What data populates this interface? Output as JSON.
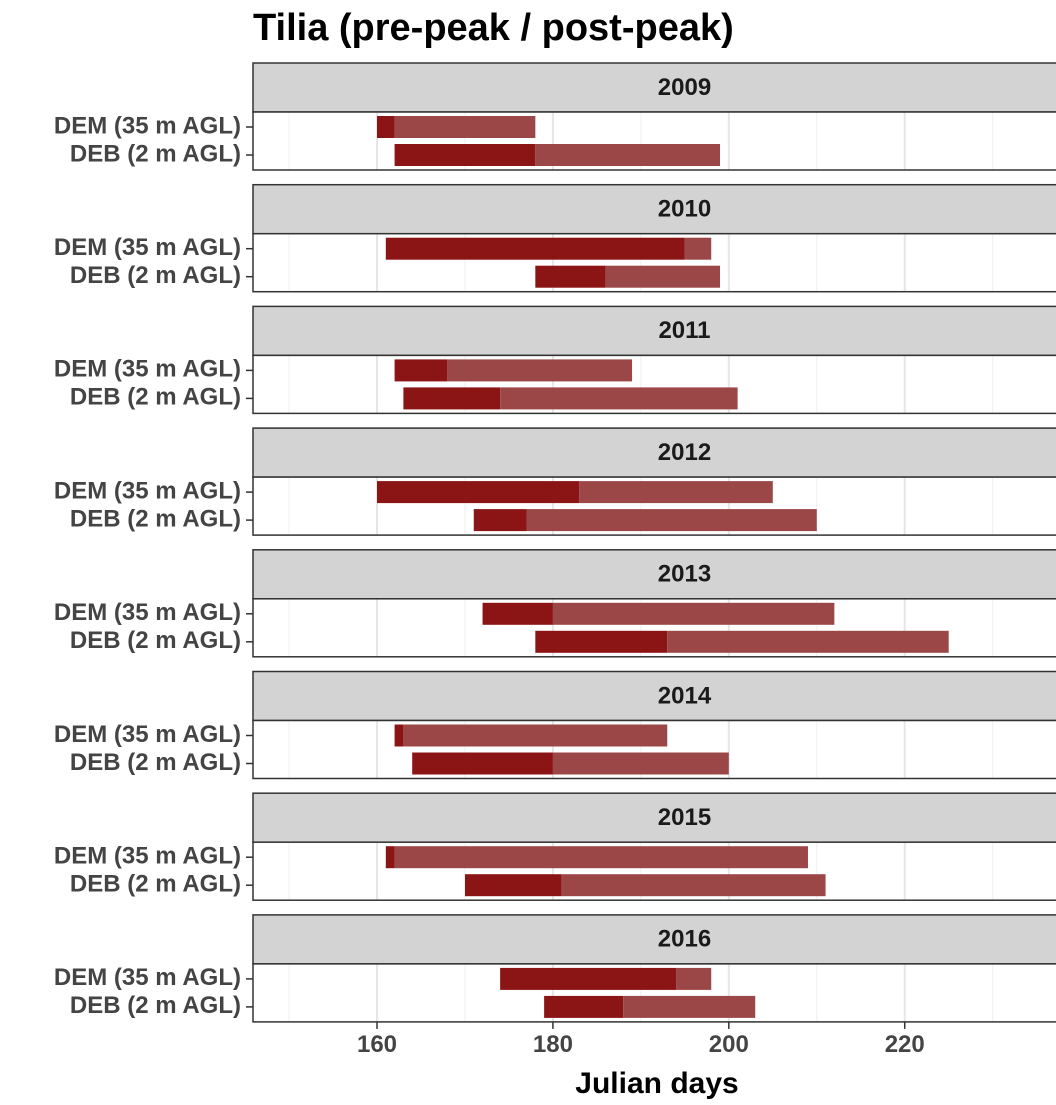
{
  "chart_data": {
    "type": "range",
    "title": "Tilia (pre-peak / post-peak)",
    "xlabel": "Julian days",
    "categories": [
      "DEM (35 m AGL)",
      "DEB (2 m AGL)"
    ],
    "colors": [
      "#8b1414",
      "#9c4747"
    ],
    "xlim": [
      145.9,
      237.2
    ],
    "xticks": [
      160,
      180,
      200,
      220
    ],
    "xminor": [
      150,
      170,
      190,
      210,
      230
    ],
    "grid": true,
    "facets": [
      {
        "label": "2009",
        "rows": [
          {
            "start": 160,
            "peak": 162,
            "end": 178
          },
          {
            "start": 162,
            "peak": 178,
            "end": 199
          }
        ]
      },
      {
        "label": "2010",
        "rows": [
          {
            "start": 161,
            "peak": 195,
            "end": 198
          },
          {
            "start": 178,
            "peak": 186,
            "end": 199
          }
        ]
      },
      {
        "label": "2011",
        "rows": [
          {
            "start": 162,
            "peak": 168,
            "end": 189
          },
          {
            "start": 163,
            "peak": 174,
            "end": 201
          }
        ]
      },
      {
        "label": "2012",
        "rows": [
          {
            "start": 160,
            "peak": 183,
            "end": 205
          },
          {
            "start": 171,
            "peak": 177,
            "end": 210
          }
        ]
      },
      {
        "label": "2013",
        "rows": [
          {
            "start": 172,
            "peak": 180,
            "end": 212
          },
          {
            "start": 178,
            "peak": 193,
            "end": 225
          }
        ]
      },
      {
        "label": "2014",
        "rows": [
          {
            "start": 162,
            "peak": 163,
            "end": 193
          },
          {
            "start": 164,
            "peak": 180,
            "end": 200
          }
        ]
      },
      {
        "label": "2015",
        "rows": [
          {
            "start": 161,
            "peak": 162,
            "end": 209
          },
          {
            "start": 170,
            "peak": 181,
            "end": 211
          }
        ]
      },
      {
        "label": "2016",
        "rows": [
          {
            "start": 174,
            "peak": 194,
            "end": 198
          },
          {
            "start": 179,
            "peak": 188,
            "end": 203
          }
        ]
      }
    ]
  }
}
